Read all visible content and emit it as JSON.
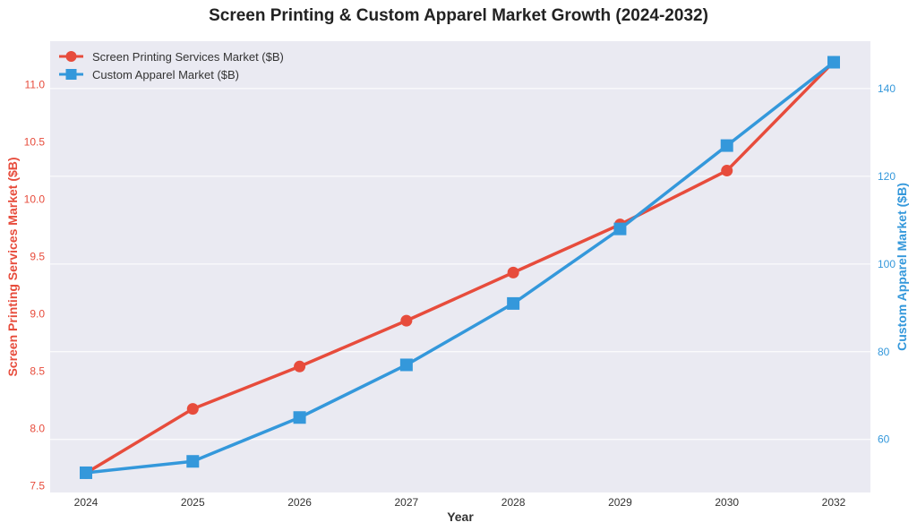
{
  "chart_data": {
    "type": "line",
    "title": "Screen Printing & Custom Apparel Market Growth (2024-2032)",
    "xlabel": "Year",
    "ylabel_left": "Screen Printing Services Market ($B)",
    "ylabel_right": "Custom Apparel Market ($B)",
    "categories": [
      "2024",
      "2025",
      "2026",
      "2027",
      "2028",
      "2029",
      "2030",
      "2032"
    ],
    "ylim_left": [
      7.44,
      11.38
    ],
    "ylim_right": [
      47.9,
      150.8
    ],
    "yticks_left": [
      "7.5",
      "8.0",
      "8.5",
      "9.0",
      "9.5",
      "10.0",
      "10.5",
      "11.0"
    ],
    "yticks_right": [
      "60",
      "80",
      "100",
      "120",
      "140"
    ],
    "grid": true,
    "legend_position": "top-left",
    "series": [
      {
        "name": "Screen Printing Services Market ($B)",
        "axis": "left",
        "marker": "circle",
        "color": "#e74c3c",
        "values": [
          7.61,
          8.17,
          8.54,
          8.94,
          9.36,
          9.78,
          10.25,
          11.2
        ]
      },
      {
        "name": "Custom Apparel Market ($B)",
        "axis": "right",
        "marker": "square",
        "color": "#3498db",
        "values": [
          52.4,
          55,
          65,
          77,
          91,
          108,
          127,
          146
        ]
      }
    ]
  }
}
